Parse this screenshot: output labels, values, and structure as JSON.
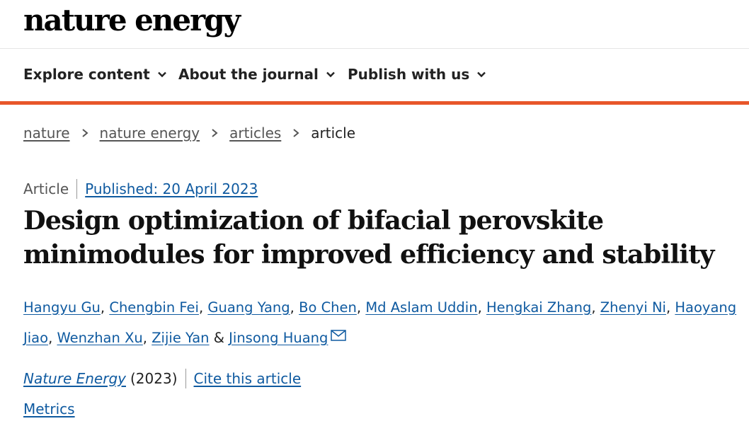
{
  "masthead": {
    "logo": "nature energy"
  },
  "nav": {
    "items": [
      {
        "label": "Explore content",
        "icon": "chevron-down-icon"
      },
      {
        "label": "About the journal",
        "icon": "chevron-down-icon"
      },
      {
        "label": "Publish with us",
        "icon": "chevron-down-icon"
      }
    ]
  },
  "breadcrumb": {
    "items": [
      "nature",
      "nature energy",
      "articles"
    ],
    "current": "article"
  },
  "article": {
    "type": "Article",
    "published": "Published: 20 April 2023",
    "title_line1": "Design optimization of bifacial perovskite",
    "title_line2": "minimodules for improved efficiency and stability",
    "authors": [
      "Hangyu Gu",
      "Chengbin Fei",
      "Guang Yang",
      "Bo Chen",
      "Md Aslam Uddin",
      "Hengkai Zhang",
      "Zhenyi Ni",
      "Haoyang Jiao",
      "Wenzhan Xu",
      "Zijie Yan",
      "Jinsong Huang"
    ],
    "author_sep": ", ",
    "author_last_sep": " & ",
    "journal": "Nature Energy",
    "year": "(2023)",
    "cite": "Cite this article",
    "metrics": "Metrics"
  },
  "colors": {
    "accent": "#e8562a",
    "link": "#0f5aa0"
  }
}
